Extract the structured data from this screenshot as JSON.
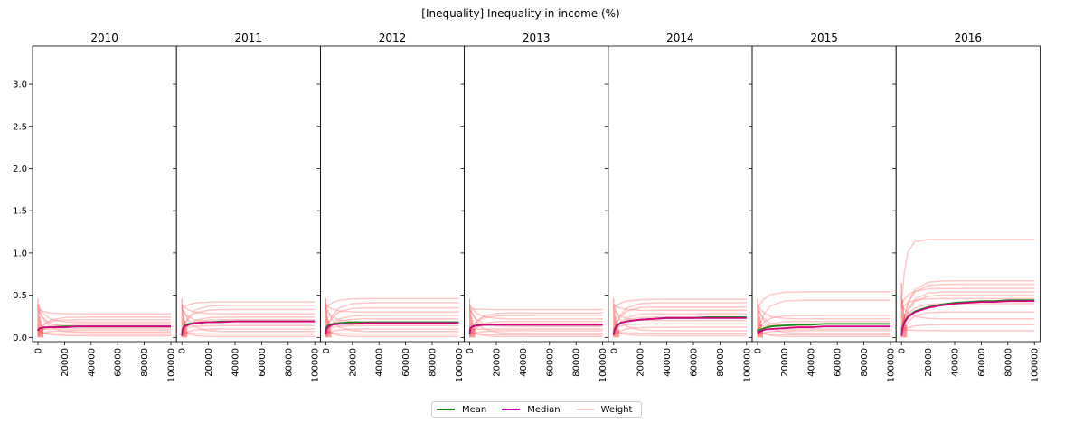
{
  "chart_data": {
    "type": "line",
    "title": "[Inequality] Inequality in income (%)",
    "panels": [
      "2010",
      "2011",
      "2012",
      "2013",
      "2014",
      "2015",
      "2016"
    ],
    "xlim": [
      0,
      100000
    ],
    "ylim": [
      -0.05,
      3.45
    ],
    "x_ticks": [
      0,
      20000,
      40000,
      60000,
      80000,
      100000
    ],
    "y_ticks": [
      0.0,
      0.5,
      1.0,
      1.5,
      2.0,
      2.5,
      3.0
    ],
    "x_tick_labels": [
      "0",
      "20000",
      "40000",
      "60000",
      "80000",
      "100000"
    ],
    "y_tick_labels": [
      "0.0",
      "0.5",
      "1.0",
      "1.5",
      "2.0",
      "2.5",
      "3.0"
    ],
    "x": [
      0,
      500,
      2000,
      5000,
      10000,
      20000,
      30000,
      40000,
      50000,
      60000,
      70000,
      80000,
      90000,
      100000
    ],
    "series_style": {
      "Mean": "#1a8c1a",
      "Median": "#bf00bf",
      "Weight": "#ff9999"
    },
    "data": [
      {
        "panel": "2010",
        "mean": [
          0.08,
          0.1,
          0.11,
          0.12,
          0.12,
          0.13,
          0.13,
          0.13,
          0.13,
          0.13,
          0.13,
          0.13,
          0.13,
          0.13
        ],
        "median": [
          0.08,
          0.1,
          0.11,
          0.12,
          0.12,
          0.12,
          0.13,
          0.13,
          0.13,
          0.13,
          0.13,
          0.13,
          0.13,
          0.13
        ],
        "weight_finals": [
          0.28,
          0.24,
          0.21,
          0.18,
          0.16,
          0.14,
          0.12,
          0.1,
          0.08,
          0.06,
          0.04,
          0.02
        ]
      },
      {
        "panel": "2011",
        "mean": [
          0.02,
          0.1,
          0.14,
          0.16,
          0.17,
          0.18,
          0.19,
          0.19,
          0.19,
          0.19,
          0.19,
          0.19,
          0.19,
          0.19
        ],
        "median": [
          0.02,
          0.09,
          0.13,
          0.15,
          0.17,
          0.18,
          0.18,
          0.19,
          0.19,
          0.19,
          0.19,
          0.19,
          0.19,
          0.19
        ],
        "weight_finals": [
          0.42,
          0.38,
          0.33,
          0.28,
          0.24,
          0.21,
          0.18,
          0.14,
          0.1,
          0.07,
          0.04,
          0.01
        ]
      },
      {
        "panel": "2012",
        "mean": [
          0.05,
          0.12,
          0.15,
          0.16,
          0.17,
          0.18,
          0.18,
          0.18,
          0.18,
          0.18,
          0.18,
          0.18,
          0.18,
          0.18
        ],
        "median": [
          0.04,
          0.1,
          0.13,
          0.15,
          0.16,
          0.16,
          0.17,
          0.17,
          0.17,
          0.17,
          0.17,
          0.17,
          0.17,
          0.17
        ],
        "weight_finals": [
          0.46,
          0.41,
          0.35,
          0.3,
          0.26,
          0.22,
          0.18,
          0.14,
          0.1,
          0.07,
          0.04,
          0.01
        ]
      },
      {
        "panel": "2013",
        "mean": [
          0.05,
          0.11,
          0.13,
          0.14,
          0.15,
          0.15,
          0.15,
          0.15,
          0.15,
          0.15,
          0.15,
          0.15,
          0.15,
          0.15
        ],
        "median": [
          0.05,
          0.11,
          0.13,
          0.14,
          0.15,
          0.15,
          0.15,
          0.15,
          0.15,
          0.15,
          0.15,
          0.15,
          0.15,
          0.15
        ],
        "weight_finals": [
          0.33,
          0.29,
          0.26,
          0.22,
          0.19,
          0.16,
          0.13,
          0.1,
          0.08,
          0.05,
          0.03,
          0.01
        ]
      },
      {
        "panel": "2014",
        "mean": [
          0.03,
          0.09,
          0.14,
          0.17,
          0.19,
          0.21,
          0.22,
          0.23,
          0.23,
          0.23,
          0.24,
          0.24,
          0.24,
          0.24
        ],
        "median": [
          0.03,
          0.08,
          0.13,
          0.17,
          0.19,
          0.21,
          0.22,
          0.23,
          0.23,
          0.23,
          0.23,
          0.23,
          0.23,
          0.23
        ],
        "weight_finals": [
          0.45,
          0.41,
          0.36,
          0.32,
          0.28,
          0.24,
          0.2,
          0.16,
          0.12,
          0.08,
          0.05,
          0.02
        ]
      },
      {
        "panel": "2015",
        "mean": [
          0.1,
          0.07,
          0.09,
          0.11,
          0.13,
          0.14,
          0.15,
          0.15,
          0.16,
          0.16,
          0.16,
          0.16,
          0.16,
          0.16
        ],
        "median": [
          0.08,
          0.05,
          0.07,
          0.09,
          0.1,
          0.11,
          0.12,
          0.12,
          0.13,
          0.13,
          0.13,
          0.13,
          0.13,
          0.13
        ],
        "weight_finals": [
          0.54,
          0.44,
          0.26,
          0.22,
          0.19,
          0.16,
          0.13,
          0.1,
          0.08,
          0.05,
          0.03,
          0.01
        ]
      },
      {
        "panel": "2016",
        "mean": [
          0.02,
          0.1,
          0.18,
          0.25,
          0.31,
          0.36,
          0.39,
          0.41,
          0.42,
          0.43,
          0.43,
          0.44,
          0.44,
          0.44
        ],
        "median": [
          0.02,
          0.09,
          0.17,
          0.24,
          0.3,
          0.35,
          0.38,
          0.4,
          0.41,
          0.42,
          0.42,
          0.43,
          0.43,
          0.43
        ],
        "weight_finals": [
          1.16,
          0.67,
          0.63,
          0.58,
          0.54,
          0.5,
          0.46,
          0.4,
          0.3,
          0.22,
          0.15,
          0.08
        ]
      }
    ],
    "legend": [
      "Mean",
      "Median",
      "Weight"
    ],
    "legend_position": "bottom-center"
  }
}
